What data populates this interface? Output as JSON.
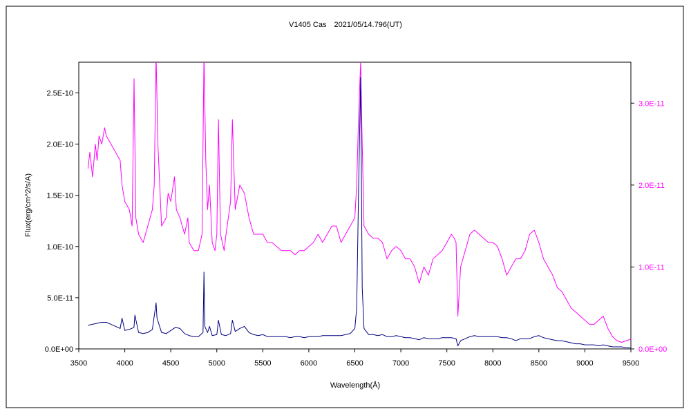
{
  "chart_data": {
    "type": "line",
    "title": "V1405 Cas　2021/05/14.796(UT)",
    "xlabel": "Wavelength(Å)",
    "ylabel": "Flux(erg/cm^2/s/A)",
    "xlim": [
      3500,
      9500
    ],
    "ylim_left": [
      0,
      2.8e-10
    ],
    "ylim_right": [
      0,
      3.5e-11
    ],
    "x_ticks": [
      "3500",
      "4000",
      "4500",
      "5000",
      "5500",
      "6000",
      "6500",
      "7000",
      "7500",
      "8000",
      "8500",
      "9000",
      "9500"
    ],
    "y_left_ticks": [
      "0.0E+00",
      "5.0E-11",
      "1.0E-10",
      "1.5E-10",
      "2.0E-10",
      "2.5E-10"
    ],
    "y_right_ticks": [
      "0.0E+00",
      "1.0E-11",
      "2.0E-11",
      "3.0E-11"
    ],
    "grid": false,
    "legend": "none",
    "colors": {
      "left_series": "#000080",
      "right_series": "#ff00ff",
      "right_axis_text": "#ff00ff"
    },
    "series": [
      {
        "axis": "left",
        "x": [
          3600,
          3650,
          3700,
          3750,
          3800,
          3850,
          3900,
          3950,
          3970,
          4000,
          4050,
          4100,
          4110,
          4150,
          4200,
          4250,
          4300,
          4340,
          4350,
          4400,
          4450,
          4500,
          4550,
          4600,
          4650,
          4700,
          4750,
          4800,
          4850,
          4861,
          4870,
          4900,
          4921,
          4950,
          5000,
          5018,
          5050,
          5100,
          5150,
          5169,
          5200,
          5250,
          5300,
          5350,
          5400,
          5450,
          5500,
          5550,
          5600,
          5650,
          5700,
          5750,
          5800,
          5850,
          5900,
          5950,
          6000,
          6050,
          6100,
          6150,
          6200,
          6250,
          6300,
          6350,
          6400,
          6450,
          6500,
          6520,
          6540,
          6563,
          6580,
          6600,
          6650,
          6700,
          6750,
          6800,
          6850,
          6900,
          6950,
          7000,
          7050,
          7100,
          7150,
          7200,
          7250,
          7300,
          7350,
          7400,
          7450,
          7500,
          7550,
          7600,
          7620,
          7650,
          7700,
          7750,
          7800,
          7850,
          7900,
          7950,
          8000,
          8050,
          8100,
          8150,
          8200,
          8250,
          8300,
          8350,
          8400,
          8450,
          8500,
          8550,
          8600,
          8650,
          8700,
          8750,
          8800,
          8850,
          8900,
          8950,
          9000,
          9050,
          9100,
          9150,
          9200,
          9250,
          9300,
          9350,
          9400,
          9450,
          9500
        ],
        "y": [
          2.3e-11,
          2.4e-11,
          2.5e-11,
          2.6e-11,
          2.6e-11,
          2.4e-11,
          2.2e-11,
          2e-11,
          3e-11,
          1.8e-11,
          1.9e-11,
          2.1e-11,
          3.3e-11,
          1.6e-11,
          1.5e-11,
          1.6e-11,
          1.9e-11,
          4.5e-11,
          3e-11,
          1.6e-11,
          1.5e-11,
          1.8e-11,
          2.1e-11,
          2e-11,
          1.5e-11,
          1.3e-11,
          1.2e-11,
          1.2e-11,
          1.6e-11,
          7.5e-11,
          2.2e-11,
          1.6e-11,
          2.2e-11,
          1.3e-11,
          1.4e-11,
          2.8e-11,
          1.4e-11,
          1.3e-11,
          1.5e-11,
          2.8e-11,
          1.7e-11,
          2e-11,
          2.2e-11,
          1.6e-11,
          1.4e-11,
          1.3e-11,
          1.4e-11,
          1.2e-11,
          1.2e-11,
          1.2e-11,
          1.2e-11,
          1.2e-11,
          1.1e-11,
          1.2e-11,
          1.2e-11,
          1.1e-11,
          1.2e-11,
          1.2e-11,
          1.2e-11,
          1.3e-11,
          1.3e-11,
          1.3e-11,
          1.3e-11,
          1.3e-11,
          1.4e-11,
          1.5e-11,
          2e-11,
          4e-11,
          1.5e-10,
          2.65e-10,
          6e-11,
          2e-11,
          1.4e-11,
          1.4e-11,
          1.3e-11,
          1.4e-11,
          1.2e-11,
          1.2e-11,
          1.3e-11,
          1.2e-11,
          1.1e-11,
          1.1e-11,
          1e-11,
          9e-12,
          1.1e-11,
          1e-11,
          1e-11,
          1e-11,
          1.1e-11,
          1.1e-11,
          1.1e-11,
          1e-11,
          3e-12,
          8e-12,
          1e-11,
          1.2e-11,
          1.3e-11,
          1.2e-11,
          1.2e-11,
          1.2e-11,
          1.2e-11,
          1.2e-11,
          1.1e-11,
          1.1e-11,
          1e-11,
          8e-12,
          1e-11,
          1e-11,
          1e-11,
          1.2e-11,
          1.3e-11,
          1.1e-11,
          1e-11,
          9e-12,
          8e-12,
          8e-12,
          7e-12,
          6e-12,
          5e-12,
          5e-12,
          4e-12,
          4e-12,
          4e-12,
          3e-12,
          4e-12,
          3e-12,
          2e-12,
          2e-12,
          2e-12,
          1e-12,
          1e-12
        ]
      },
      {
        "axis": "right",
        "x": [
          3600,
          3620,
          3650,
          3680,
          3700,
          3720,
          3750,
          3780,
          3800,
          3850,
          3900,
          3950,
          3970,
          4000,
          4050,
          4080,
          4101,
          4120,
          4150,
          4200,
          4250,
          4300,
          4320,
          4340,
          4360,
          4400,
          4450,
          4471,
          4500,
          4540,
          4560,
          4600,
          4650,
          4686,
          4700,
          4750,
          4800,
          4840,
          4861,
          4880,
          4900,
          4921,
          4950,
          4980,
          5000,
          5018,
          5040,
          5080,
          5100,
          5150,
          5169,
          5200,
          5250,
          5300,
          5350,
          5400,
          5450,
          5500,
          5550,
          5600,
          5650,
          5700,
          5750,
          5800,
          5850,
          5900,
          5950,
          6000,
          6050,
          6100,
          6150,
          6200,
          6250,
          6300,
          6350,
          6400,
          6450,
          6500,
          6520,
          6540,
          6563,
          6580,
          6600,
          6650,
          6700,
          6750,
          6800,
          6850,
          6900,
          6950,
          7000,
          7050,
          7100,
          7150,
          7200,
          7250,
          7300,
          7350,
          7400,
          7450,
          7500,
          7550,
          7580,
          7600,
          7620,
          7650,
          7700,
          7750,
          7800,
          7850,
          7900,
          7950,
          8000,
          8050,
          8100,
          8150,
          8200,
          8250,
          8300,
          8350,
          8400,
          8450,
          8500,
          8550,
          8600,
          8650,
          8700,
          8750,
          8800,
          8850,
          8900,
          8950,
          9000,
          9050,
          9100,
          9150,
          9200,
          9250,
          9300,
          9350,
          9400,
          9450,
          9500
        ],
        "y": [
          2.2e-11,
          2.4e-11,
          2.1e-11,
          2.5e-11,
          2.3e-11,
          2.6e-11,
          2.5e-11,
          2.7e-11,
          2.6e-11,
          2.5e-11,
          2.4e-11,
          2.3e-11,
          2e-11,
          1.8e-11,
          1.7e-11,
          1.5e-11,
          3.3e-11,
          1.6e-11,
          1.4e-11,
          1.3e-11,
          1.5e-11,
          1.7e-11,
          2e-11,
          3.6e-11,
          2.5e-11,
          1.5e-11,
          1.6e-11,
          1.9e-11,
          1.8e-11,
          2.1e-11,
          1.7e-11,
          1.6e-11,
          1.4e-11,
          1.6e-11,
          1.3e-11,
          1.2e-11,
          1.2e-11,
          1.4e-11,
          3.6e-11,
          2.3e-11,
          1.7e-11,
          2e-11,
          1.3e-11,
          1.2e-11,
          1.4e-11,
          2.8e-11,
          1.4e-11,
          1.2e-11,
          1.4e-11,
          1.8e-11,
          2.8e-11,
          1.7e-11,
          2e-11,
          1.9e-11,
          1.6e-11,
          1.4e-11,
          1.4e-11,
          1.4e-11,
          1.3e-11,
          1.3e-11,
          1.25e-11,
          1.2e-11,
          1.2e-11,
          1.2e-11,
          1.15e-11,
          1.2e-11,
          1.2e-11,
          1.25e-11,
          1.3e-11,
          1.4e-11,
          1.3e-11,
          1.4e-11,
          1.5e-11,
          1.5e-11,
          1.3e-11,
          1.4e-11,
          1.5e-11,
          1.6e-11,
          2e-11,
          2.8e-11,
          3.5e-11,
          2.5e-11,
          1.5e-11,
          1.4e-11,
          1.35e-11,
          1.35e-11,
          1.3e-11,
          1.1e-11,
          1.2e-11,
          1.25e-11,
          1.2e-11,
          1.1e-11,
          1.1e-11,
          1e-11,
          8e-12,
          1e-11,
          9e-12,
          1.1e-11,
          1.15e-11,
          1.2e-11,
          1.3e-11,
          1.4e-11,
          1.35e-11,
          1.3e-11,
          4e-12,
          1e-11,
          1.2e-11,
          1.4e-11,
          1.45e-11,
          1.4e-11,
          1.35e-11,
          1.3e-11,
          1.3e-11,
          1.25e-11,
          1.1e-11,
          9e-12,
          1e-11,
          1.1e-11,
          1.1e-11,
          1.2e-11,
          1.4e-11,
          1.45e-11,
          1.3e-11,
          1.1e-11,
          1e-11,
          9e-12,
          7.5e-12,
          7e-12,
          6e-12,
          5e-12,
          4.5e-12,
          4e-12,
          3.5e-12,
          3e-12,
          3e-12,
          3.5e-12,
          4e-12,
          2.5e-12,
          1.5e-12,
          1e-12,
          8e-13,
          1e-12,
          1.2e-12
        ]
      }
    ]
  }
}
